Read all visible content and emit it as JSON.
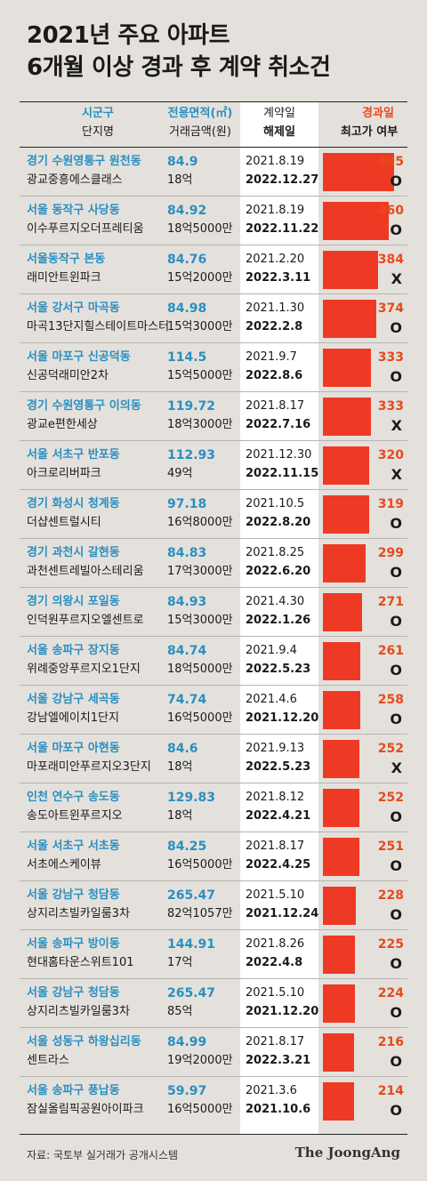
{
  "title_line1": "2021년 주요 아파트",
  "title_line2": "6개월 이상 경과 후 계약 취소건",
  "header": {
    "region": "시군구",
    "apt": "단지명",
    "area": "전용면적(㎡)",
    "price": "거래금액(원)",
    "contract": "계약일",
    "cancel": "해제일",
    "elapsed": "경과일",
    "high": "최고가 여부"
  },
  "source": "자료: 국토부 실거래가 공개시스템",
  "logo": "The JoongAng",
  "colors": {
    "bar": "#ee3a24",
    "accent_blue": "#2a8fc0",
    "accent_red": "#e64a19"
  },
  "chart_data": {
    "type": "table",
    "bar_max": 495,
    "rows": [
      {
        "region": "경기 수원영통구 원천동",
        "apt": "광교중흥에스클래스",
        "area": "84.9",
        "price": "18억",
        "contract": "2021.8.19",
        "cancel": "2022.12.27",
        "days": 495,
        "high": "O"
      },
      {
        "region": "서울 동작구 사당동",
        "apt": "이수푸르지오더프레티움",
        "area": "84.92",
        "price": "18억5000만",
        "contract": "2021.8.19",
        "cancel": "2022.11.22",
        "days": 460,
        "high": "O"
      },
      {
        "region": "서울동작구 본동",
        "apt": "래미안트윈파크",
        "area": "84.76",
        "price": "15억2000만",
        "contract": "2021.2.20",
        "cancel": "2022.3.11",
        "days": 384,
        "high": "X"
      },
      {
        "region": "서울 강서구 마곡동",
        "apt": "마곡13단지힐스테이트마스터",
        "area": "84.98",
        "price": "15억3000만",
        "contract": "2021.1.30",
        "cancel": "2022.2.8",
        "days": 374,
        "high": "O"
      },
      {
        "region": "서울 마포구 신공덕동",
        "apt": "신공덕래미안2차",
        "area": "114.5",
        "price": "15억5000만",
        "contract": "2021.9.7",
        "cancel": "2022.8.6",
        "days": 333,
        "high": "O"
      },
      {
        "region": "경기 수원영통구 이의동",
        "apt": "광교e편한세상",
        "area": "119.72",
        "price": "18억3000만",
        "contract": "2021.8.17",
        "cancel": "2022.7.16",
        "days": 333,
        "high": "X"
      },
      {
        "region": "서울 서초구 반포동",
        "apt": "아크로리버파크",
        "area": "112.93",
        "price": "49억",
        "contract": "2021.12.30",
        "cancel": "2022.11.15",
        "days": 320,
        "high": "X"
      },
      {
        "region": "경기 화성시 청계동",
        "apt": "더샵센트럴시티",
        "area": "97.18",
        "price": "16억8000만",
        "contract": "2021.10.5",
        "cancel": "2022.8.20",
        "days": 319,
        "high": "O"
      },
      {
        "region": "경기 과천시 갈현동",
        "apt": "과천센트레빌아스테리움",
        "area": "84.83",
        "price": "17억3000만",
        "contract": "2021.8.25",
        "cancel": "2022.6.20",
        "days": 299,
        "high": "O"
      },
      {
        "region": "경기 의왕시 포일동",
        "apt": "인덕원푸르지오엘센트로",
        "area": "84.93",
        "price": "15억3000만",
        "contract": "2021.4.30",
        "cancel": "2022.1.26",
        "days": 271,
        "high": "O"
      },
      {
        "region": "서울 송파구 장지동",
        "apt": "위례중앙푸르지오1단지",
        "area": "84.74",
        "price": "18억5000만",
        "contract": "2021.9.4",
        "cancel": "2022.5.23",
        "days": 261,
        "high": "O"
      },
      {
        "region": "서울 강남구 세곡동",
        "apt": "강남엘에이치1단지",
        "area": "74.74",
        "price": "16억5000만",
        "contract": "2021.4.6",
        "cancel": "2021.12.20",
        "days": 258,
        "high": "O"
      },
      {
        "region": "서울 마포구 아현동",
        "apt": "마포래미안푸르지오3단지",
        "area": "84.6",
        "price": "18억",
        "contract": "2021.9.13",
        "cancel": "2022.5.23",
        "days": 252,
        "high": "X"
      },
      {
        "region": "인천 연수구 송도동",
        "apt": "송도아트윈푸르지오",
        "area": "129.83",
        "price": "18억",
        "contract": "2021.8.12",
        "cancel": "2022.4.21",
        "days": 252,
        "high": "O"
      },
      {
        "region": "서울 서초구 서초동",
        "apt": "서초에스케이뷰",
        "area": "84.25",
        "price": "16억5000만",
        "contract": "2021.8.17",
        "cancel": "2022.4.25",
        "days": 251,
        "high": "O"
      },
      {
        "region": "서울 강남구 청담동",
        "apt": "상지리츠빌카일룸3차",
        "area": "265.47",
        "price": "82억1057만",
        "contract": "2021.5.10",
        "cancel": "2021.12.24",
        "days": 228,
        "high": "O"
      },
      {
        "region": "서울 송파구 방이동",
        "apt": "현대홈타운스위트101",
        "area": "144.91",
        "price": "17억",
        "contract": "2021.8.26",
        "cancel": "2022.4.8",
        "days": 225,
        "high": "O"
      },
      {
        "region": "서울 강남구 청담동",
        "apt": "상지리츠빌카일룸3차",
        "area": "265.47",
        "price": "85억",
        "contract": "2021.5.10",
        "cancel": "2021.12.20",
        "days": 224,
        "high": "O"
      },
      {
        "region": "서울 성동구 하왕십리동",
        "apt": "센트라스",
        "area": "84.99",
        "price": "19억2000만",
        "contract": "2021.8.17",
        "cancel": "2022.3.21",
        "days": 216,
        "high": "O"
      },
      {
        "region": "서울 송파구 풍납동",
        "apt": "잠실올림픽공원아이파크",
        "area": "59.97",
        "price": "16억5000만",
        "contract": "2021.3.6",
        "cancel": "2021.10.6",
        "days": 214,
        "high": "O"
      }
    ]
  }
}
